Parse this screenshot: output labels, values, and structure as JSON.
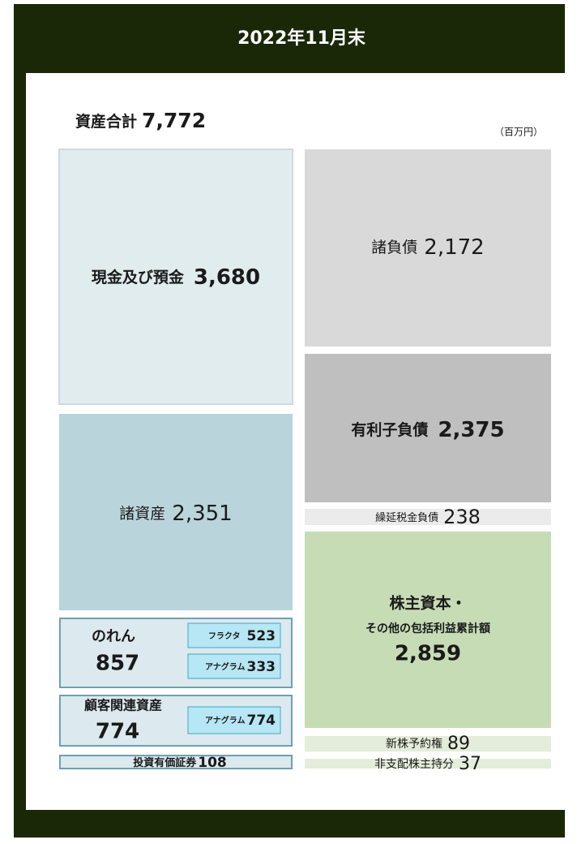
{
  "header": {
    "title": "2022年11月末"
  },
  "total": {
    "label": "資産合計",
    "value": "7,772"
  },
  "unit": "（百万円）",
  "assets": {
    "cash": {
      "label": "現金及び預金",
      "value": "3,680"
    },
    "other": {
      "label": "諸資産",
      "value": "2,351"
    },
    "goodwill": {
      "label": "のれん",
      "value": "857",
      "items": [
        {
          "label": "フラクタ",
          "value": "523"
        },
        {
          "label": "アナグラム",
          "value": "333"
        }
      ]
    },
    "customer": {
      "label": "顧客関連資産",
      "value": "774",
      "items": [
        {
          "label": "アナグラム",
          "value": "774"
        }
      ]
    },
    "securities": {
      "label": "投資有価証券",
      "value": "108"
    }
  },
  "liabilities": {
    "other": {
      "label": "諸負債",
      "value": "2,172"
    },
    "debt": {
      "label": "有利子負債",
      "value": "2,375"
    },
    "deferred": {
      "label": "繰延税金負債",
      "value": "238"
    }
  },
  "equity": {
    "capital": {
      "label_1": "株主資本・",
      "label_2": "その他の包括利益累計額",
      "value": "2,859"
    },
    "warrants": {
      "label": "新株予約権",
      "value": "89"
    },
    "minority": {
      "label": "非支配株主持分",
      "value": "37"
    }
  }
}
